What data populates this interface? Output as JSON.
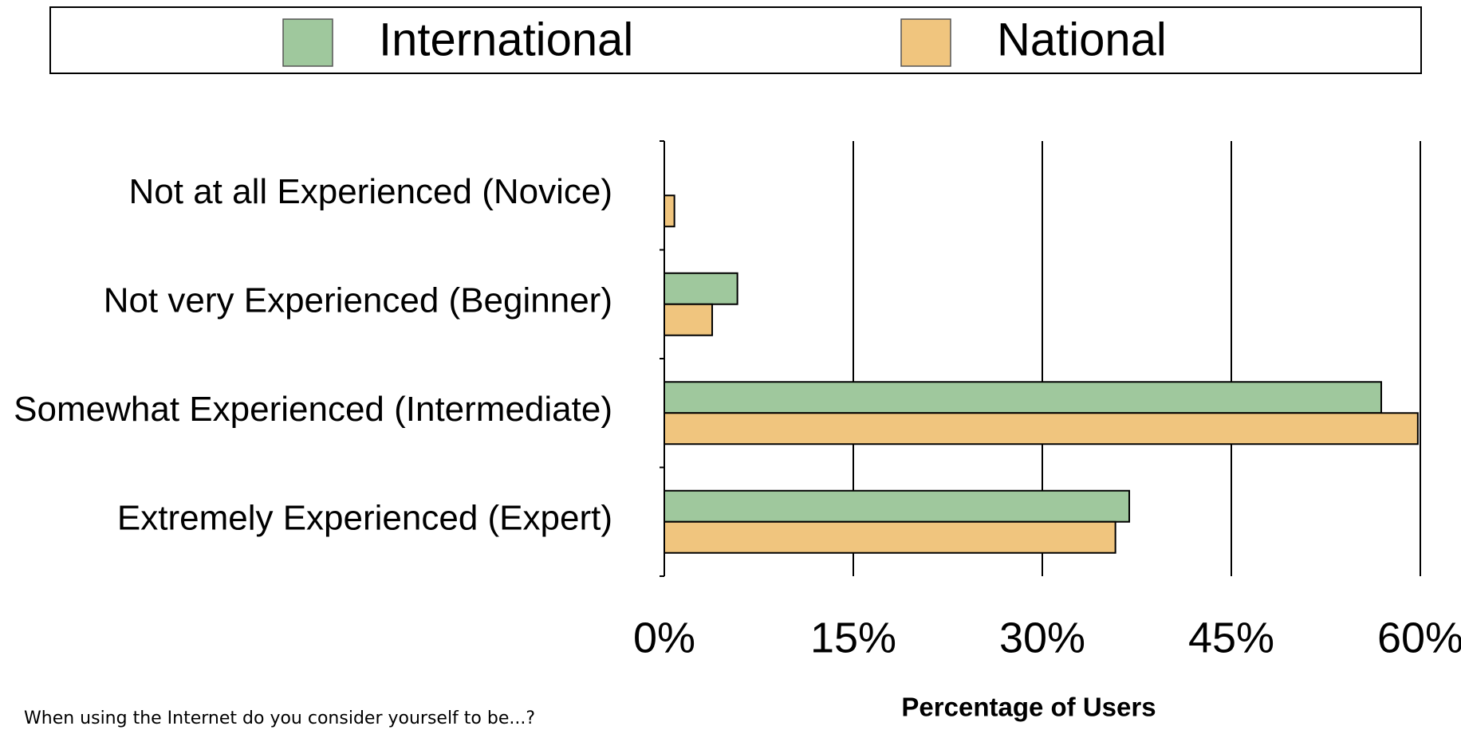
{
  "chart_data": {
    "type": "bar",
    "orientation": "horizontal",
    "categories": [
      "Not at all Experienced (Novice)",
      "Not very Experienced (Beginner)",
      "Somewhat Experienced (Intermediate)",
      "Extremely Experienced (Expert)"
    ],
    "series": [
      {
        "name": "International",
        "color": "#9fc89d",
        "values": [
          0,
          5.8,
          56.9,
          36.9
        ]
      },
      {
        "name": "National",
        "color": "#f0c57e",
        "values": [
          0.8,
          3.8,
          59.8,
          35.8
        ]
      }
    ],
    "xlim": [
      0,
      60
    ],
    "xticks": [
      {
        "value": 0,
        "label": "0%"
      },
      {
        "value": 15,
        "label": "15%"
      },
      {
        "value": 30,
        "label": "30%"
      },
      {
        "value": 45,
        "label": "45%"
      },
      {
        "value": 60,
        "label": "60%"
      }
    ],
    "xlabel": "Percentage of Users",
    "note": "When using the Internet do you consider yourself to be...?",
    "grid": true,
    "legend": "top"
  }
}
